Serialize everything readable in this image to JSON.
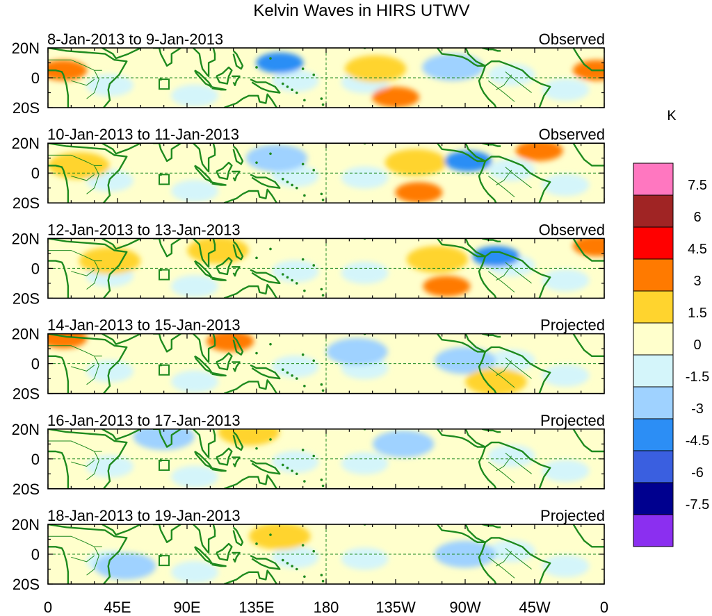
{
  "title": "Kelvin Waves in HIRS UTWV",
  "units_label": "K",
  "lat_labels": [
    "20N",
    "0",
    "20S"
  ],
  "lon_labels": [
    "0",
    "45E",
    "90E",
    "135E",
    "180",
    "135W",
    "90W",
    "45W",
    "0"
  ],
  "colorbar": {
    "labels": [
      "7.5",
      "6",
      "4.5",
      "3",
      "1.5",
      "0",
      "-1.5",
      "-3",
      "-4.5",
      "-6",
      "-7.5"
    ],
    "colors": [
      "#ff77c0",
      "#a02424",
      "#ff0000",
      "#ff7a00",
      "#ffd42e",
      "#ffffcc",
      "#d4f5fa",
      "#9fd2ff",
      "#2c8ef5",
      "#3a5fe0",
      "#00008f",
      "#8b2ff0"
    ]
  },
  "palette": {
    "coast": "#1e8a1e",
    "axis": "#000000"
  },
  "panels": [
    {
      "date_range": "8-Jan-2013 to 9-Jan-2013",
      "status": "Observed",
      "blobs": [
        {
          "lon": 205,
          "lat": 8,
          "level": 4
        },
        {
          "lon": 212,
          "lat": 6,
          "level": 3
        },
        {
          "lon": 212,
          "lat": 6,
          "level": 2
        },
        {
          "lon": 212,
          "lat": 6,
          "level": 1
        },
        {
          "lon": 270,
          "lat": 7,
          "level": -4
        },
        {
          "lon": 263,
          "lat": 7,
          "level": -3
        },
        {
          "lon": 263,
          "lat": 7,
          "level": -2
        },
        {
          "lon": 262,
          "lat": 7,
          "level": -1
        },
        {
          "lon": 225,
          "lat": -13,
          "level": 2
        },
        {
          "lon": 150,
          "lat": 10,
          "level": -2
        },
        {
          "lon": 10,
          "lat": 5,
          "level": 2
        },
        {
          "lon": 355,
          "lat": 5,
          "level": 2
        }
      ]
    },
    {
      "date_range": "10-Jan-2013 to 11-Jan-2013",
      "status": "Observed",
      "blobs": [
        {
          "lon": 238,
          "lat": 7,
          "level": 3
        },
        {
          "lon": 238,
          "lat": 7,
          "level": 2
        },
        {
          "lon": 238,
          "lat": 7,
          "level": 1
        },
        {
          "lon": 240,
          "lat": -13,
          "level": 2
        },
        {
          "lon": 272,
          "lat": 8,
          "level": -2
        },
        {
          "lon": 148,
          "lat": 10,
          "level": -1
        },
        {
          "lon": 20,
          "lat": 5,
          "level": 1
        },
        {
          "lon": 318,
          "lat": 15,
          "level": 2
        }
      ]
    },
    {
      "date_range": "12-Jan-2013 to 13-Jan-2013",
      "status": "Observed",
      "blobs": [
        {
          "lon": 110,
          "lat": 12,
          "level": 3
        },
        {
          "lon": 110,
          "lat": 12,
          "level": 2
        },
        {
          "lon": 110,
          "lat": 12,
          "level": 1
        },
        {
          "lon": 252,
          "lat": 6,
          "level": 2
        },
        {
          "lon": 252,
          "lat": 6,
          "level": 1
        },
        {
          "lon": 258,
          "lat": -12,
          "level": 2
        },
        {
          "lon": 355,
          "lat": 15,
          "level": 2
        },
        {
          "lon": 290,
          "lat": 8,
          "level": -2
        },
        {
          "lon": 40,
          "lat": 5,
          "level": 1
        }
      ]
    },
    {
      "date_range": "14-Jan-2013 to 15-Jan-2013",
      "status": "Projected",
      "blobs": [
        {
          "lon": 118,
          "lat": 15,
          "level": 2
        },
        {
          "lon": 10,
          "lat": 17,
          "level": 2
        },
        {
          "lon": 270,
          "lat": 2,
          "level": -1
        },
        {
          "lon": 290,
          "lat": -12,
          "level": 1
        },
        {
          "lon": 200,
          "lat": 8,
          "level": -1
        }
      ]
    },
    {
      "date_range": "16-Jan-2013 to 17-Jan-2013",
      "status": "Projected",
      "blobs": [
        {
          "lon": 130,
          "lat": 18,
          "level": 1
        },
        {
          "lon": 75,
          "lat": 15,
          "level": -1
        },
        {
          "lon": 230,
          "lat": 10,
          "level": -1
        }
      ]
    },
    {
      "date_range": "18-Jan-2013 to 19-Jan-2013",
      "status": "Projected",
      "blobs": [
        {
          "lon": 270,
          "lat": 0,
          "level": -1
        },
        {
          "lon": 50,
          "lat": -8,
          "level": -1
        },
        {
          "lon": 150,
          "lat": 12,
          "level": 1
        }
      ]
    }
  ]
}
